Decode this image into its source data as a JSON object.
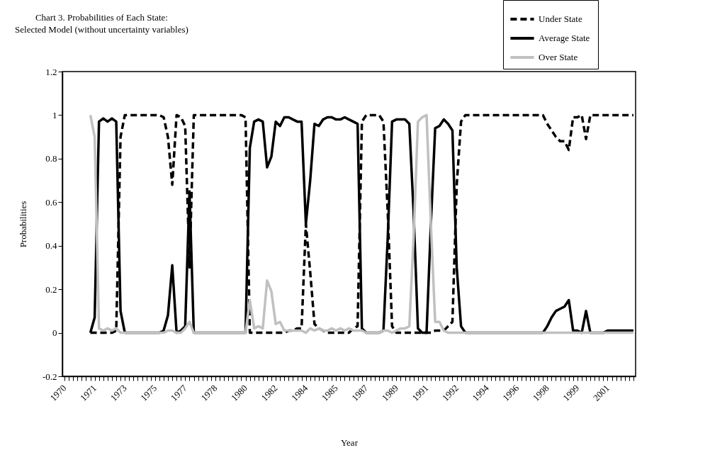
{
  "chart_data": {
    "type": "line",
    "title": "Chart 3. Probabilities of Each State:",
    "subtitle": "Selected Model (without uncertainty variables)",
    "xlabel": "Year",
    "ylabel": "Probabilities",
    "categories": [
      "1970",
      null,
      null,
      null,
      null,
      null,
      null,
      "1971",
      null,
      null,
      null,
      null,
      null,
      null,
      "1973",
      null,
      null,
      null,
      null,
      null,
      null,
      "1975",
      null,
      null,
      null,
      null,
      null,
      null,
      "1977",
      null,
      null,
      null,
      null,
      null,
      null,
      "1978",
      null,
      null,
      null,
      null,
      null,
      null,
      "1980",
      null,
      null,
      null,
      null,
      null,
      null,
      "1982",
      null,
      null,
      null,
      null,
      null,
      null,
      "1984",
      null,
      null,
      null,
      null,
      null,
      null,
      "1985",
      null,
      null,
      null,
      null,
      null,
      null,
      "1987",
      null,
      null,
      null,
      null,
      null,
      null,
      "1989",
      null,
      null,
      null,
      null,
      null,
      null,
      "1991",
      null,
      null,
      null,
      null,
      null,
      null,
      "1992",
      null,
      null,
      null,
      null,
      null,
      null,
      "1994",
      null,
      null,
      null,
      null,
      null,
      null,
      "1996",
      null,
      null,
      null,
      null,
      null,
      null,
      "1998",
      null,
      null,
      null,
      null,
      null,
      null,
      "1999",
      null,
      null,
      null,
      null,
      null,
      null,
      "2001",
      null,
      null,
      null,
      null,
      null,
      null
    ],
    "series": [
      {
        "name": "Under State",
        "color": "#000000",
        "line_style": "dashed",
        "values": [
          null,
          null,
          null,
          null,
          null,
          null,
          0,
          0,
          0,
          0,
          0,
          0,
          0.01,
          0.9,
          1,
          1,
          1,
          1,
          1,
          1,
          1,
          1,
          1,
          0.99,
          0.9,
          0.68,
          1,
          0.99,
          0.95,
          0.3,
          1,
          1,
          1,
          1,
          1,
          1,
          1,
          1,
          1,
          1,
          1,
          1,
          0.99,
          0,
          0,
          0,
          0,
          0,
          0,
          0,
          0,
          0,
          0.01,
          0.01,
          0.02,
          0.02,
          0.5,
          0.28,
          0.04,
          0.02,
          0.01,
          0,
          0,
          0,
          0,
          0,
          0,
          0.02,
          0.03,
          0.97,
          1,
          1,
          1,
          1,
          0.97,
          0.55,
          0.03,
          0,
          0,
          0,
          0,
          0,
          0,
          0,
          0,
          0,
          0.01,
          0.01,
          0.01,
          0.03,
          0.05,
          0.68,
          0.97,
          1,
          1,
          1,
          1,
          1,
          1,
          1,
          1,
          1,
          1,
          1,
          1,
          1,
          1,
          1,
          1,
          1,
          1,
          1,
          0.96,
          0.93,
          0.9,
          0.88,
          0.88,
          0.84,
          0.99,
          0.99,
          1,
          0.89,
          1,
          1,
          1,
          1,
          1,
          1,
          1,
          1,
          1,
          1,
          1
        ]
      },
      {
        "name": "Average  State",
        "color": "#000000",
        "line_style": "solid",
        "values": [
          null,
          null,
          null,
          null,
          null,
          null,
          0,
          0.07,
          0.97,
          0.985,
          0.97,
          0.985,
          0.97,
          0.1,
          0,
          0,
          0,
          0,
          0,
          0,
          0,
          0,
          0,
          0.01,
          0.08,
          0.31,
          0,
          0.01,
          0.03,
          0.65,
          0,
          0,
          0,
          0,
          0,
          0,
          0,
          0,
          0,
          0,
          0,
          0,
          0,
          0.85,
          0.97,
          0.98,
          0.97,
          0.76,
          0.81,
          0.97,
          0.95,
          0.99,
          0.99,
          0.98,
          0.97,
          0.97,
          0.5,
          0.7,
          0.96,
          0.95,
          0.98,
          0.99,
          0.99,
          0.98,
          0.98,
          0.99,
          0.98,
          0.97,
          0.96,
          0.02,
          0,
          0,
          0,
          0,
          0.01,
          0.44,
          0.97,
          0.98,
          0.98,
          0.98,
          0.96,
          0.55,
          0.02,
          0,
          0,
          0.5,
          0.94,
          0.95,
          0.98,
          0.96,
          0.93,
          0.3,
          0.03,
          0,
          0,
          0,
          0,
          0,
          0,
          0,
          0,
          0,
          0,
          0,
          0,
          0,
          0,
          0,
          0,
          0,
          0,
          0,
          0.03,
          0.07,
          0.1,
          0.11,
          0.12,
          0.15,
          0.01,
          0.01,
          0,
          0.1,
          0,
          0,
          0,
          0,
          0.01,
          0.01,
          0.01,
          0.01,
          0.01,
          0.01,
          0.01
        ]
      },
      {
        "name": "Over State",
        "color": "#c0c0c0",
        "line_style": "solid",
        "values": [
          null,
          null,
          null,
          null,
          null,
          null,
          1,
          0.9,
          0.02,
          0.01,
          0.02,
          0.01,
          0.02,
          0,
          0,
          0,
          0,
          0,
          0,
          0,
          0,
          0,
          0,
          0,
          0.01,
          0.01,
          0,
          0,
          0.02,
          0.05,
          0,
          0,
          0,
          0,
          0,
          0,
          0,
          0,
          0,
          0,
          0,
          0,
          0,
          0.15,
          0.02,
          0.03,
          0.02,
          0.24,
          0.19,
          0.04,
          0.05,
          0.01,
          0.01,
          0.01,
          0.01,
          0.01,
          0,
          0.02,
          0.01,
          0.02,
          0.01,
          0.01,
          0.02,
          0.01,
          0.02,
          0.01,
          0.02,
          0.01,
          0.01,
          0.01,
          0,
          0,
          0,
          0,
          0.01,
          0.01,
          0,
          0.01,
          0.02,
          0.02,
          0.03,
          0.44,
          0.97,
          0.99,
          1,
          0.5,
          0.05,
          0.05,
          0.01,
          0,
          0,
          0,
          0,
          0,
          0,
          0,
          0,
          0,
          0,
          0,
          0,
          0,
          0,
          0,
          0,
          0,
          0,
          0,
          0,
          0,
          0,
          0,
          0,
          0,
          0,
          0,
          0,
          0,
          0,
          0,
          0,
          0,
          0,
          0,
          0,
          0,
          0,
          0,
          0,
          0,
          0,
          0,
          0
        ]
      }
    ],
    "ylim": [
      -0.2,
      1.2
    ],
    "yticks": [
      -0.2,
      0,
      0.2,
      0.4,
      0.6,
      0.8,
      1,
      1.2
    ],
    "legend": "top right"
  }
}
